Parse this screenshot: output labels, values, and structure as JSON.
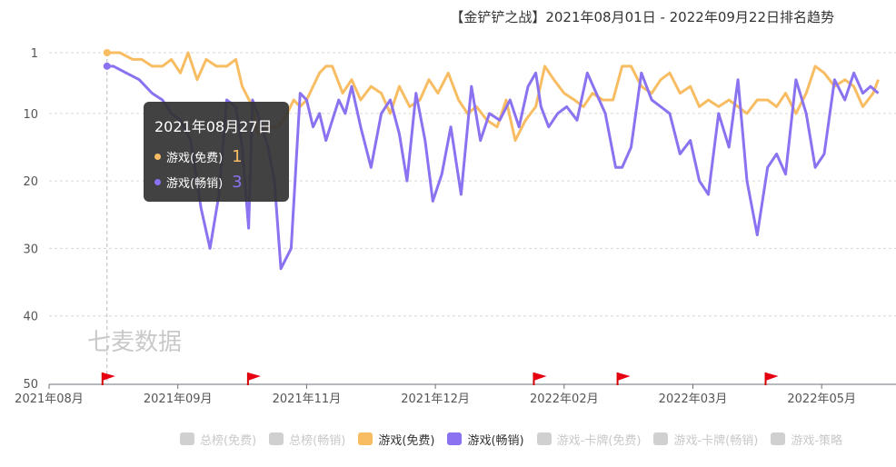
{
  "title": "【金铲铲之战】2021年08月01日 - 2022年09月22日排名趋势",
  "watermark": "七麦数据",
  "colors": {
    "free": "#f8bd63",
    "paid": "#8a72f0",
    "inactive": "#d0d0d0"
  },
  "tooltip": {
    "date": "2021年08月27日",
    "rows": [
      {
        "label": "游戏(免费)",
        "value": "1",
        "color": "#f8bd63"
      },
      {
        "label": "游戏(畅销)",
        "value": "3",
        "color": "#8a72f0"
      }
    ]
  },
  "legend": [
    {
      "label": "总榜(免费)",
      "active": false,
      "color": "#d0d0d0"
    },
    {
      "label": "总榜(畅销)",
      "active": false,
      "color": "#d0d0d0"
    },
    {
      "label": "游戏(免费)",
      "active": true,
      "color": "#f8bd63"
    },
    {
      "label": "游戏(畅销)",
      "active": true,
      "color": "#8a72f0"
    },
    {
      "label": "游戏-卡牌(免费)",
      "active": false,
      "color": "#d0d0d0"
    },
    {
      "label": "游戏-卡牌(畅销)",
      "active": false,
      "color": "#d0d0d0"
    },
    {
      "label": "游戏-策略",
      "active": false,
      "color": "#d0d0d0"
    }
  ],
  "chart_data": {
    "type": "line",
    "y_inverted": true,
    "ylim": [
      1,
      50
    ],
    "y_ticks": [
      1,
      10,
      20,
      30,
      40,
      50
    ],
    "x_tick_labels": [
      "2021年08月",
      "2021年09月",
      "2021年11月",
      "2021年12月",
      "2022年02月",
      "2022年03月",
      "2022年05月"
    ],
    "x_tick_positions": [
      0,
      1,
      2,
      3,
      4,
      5,
      6
    ],
    "x_range": [
      0,
      6.44
    ],
    "grid": true,
    "legend_position": "bottom",
    "crosshair_x": 0.45,
    "event_flags_x": [
      0.45,
      1.58,
      3.8,
      4.45,
      5.6
    ],
    "series": [
      {
        "name": "游戏(免费)",
        "color": "#f8bd63",
        "x": [
          0.45,
          0.55,
          0.65,
          0.72,
          0.8,
          0.88,
          0.95,
          1.02,
          1.08,
          1.15,
          1.22,
          1.3,
          1.38,
          1.45,
          1.5,
          1.58,
          1.62,
          1.7,
          1.78,
          1.85,
          1.9,
          1.95,
          2.0,
          2.05,
          2.1,
          2.15,
          2.2,
          2.28,
          2.35,
          2.42,
          2.5,
          2.58,
          2.65,
          2.72,
          2.8,
          2.88,
          2.95,
          3.02,
          3.1,
          3.18,
          3.25,
          3.32,
          3.4,
          3.48,
          3.55,
          3.62,
          3.7,
          3.78,
          3.85,
          3.92,
          4.0,
          4.08,
          4.15,
          4.22,
          4.3,
          4.38,
          4.45,
          4.52,
          4.6,
          4.68,
          4.75,
          4.82,
          4.9,
          4.98,
          5.05,
          5.12,
          5.2,
          5.28,
          5.35,
          5.42,
          5.5,
          5.58,
          5.65,
          5.72,
          5.8,
          5.88,
          5.95,
          6.02,
          6.1,
          6.18,
          6.25,
          6.32,
          6.4,
          6.44
        ],
        "values": [
          1,
          1,
          2,
          2,
          3,
          3,
          2,
          4,
          1,
          5,
          2,
          3,
          3,
          2,
          6,
          9,
          13,
          12,
          12,
          10,
          8,
          9,
          8,
          6,
          4,
          3,
          3,
          7,
          5,
          8,
          6,
          7,
          10,
          6,
          9,
          8,
          5,
          7,
          4,
          8,
          10,
          9,
          11,
          12,
          8,
          14,
          11,
          9,
          3,
          5,
          7,
          8,
          9,
          7,
          8,
          8,
          3,
          3,
          6,
          7,
          5,
          4,
          7,
          6,
          9,
          8,
          9,
          8,
          9,
          10,
          8,
          8,
          9,
          7,
          10,
          7,
          3,
          4,
          6,
          5,
          6,
          9,
          7,
          5
        ]
      },
      {
        "name": "游戏(畅销)",
        "color": "#8a72f0",
        "x": [
          0.45,
          0.5,
          0.6,
          0.7,
          0.8,
          0.88,
          0.95,
          1.02,
          1.1,
          1.18,
          1.25,
          1.32,
          1.38,
          1.45,
          1.5,
          1.55,
          1.58,
          1.62,
          1.7,
          1.75,
          1.8,
          1.88,
          1.95,
          2.0,
          2.05,
          2.1,
          2.15,
          2.2,
          2.25,
          2.3,
          2.35,
          2.42,
          2.5,
          2.58,
          2.65,
          2.72,
          2.78,
          2.85,
          2.92,
          2.98,
          3.05,
          3.12,
          3.2,
          3.28,
          3.35,
          3.42,
          3.5,
          3.58,
          3.65,
          3.72,
          3.78,
          3.82,
          3.88,
          3.95,
          4.02,
          4.1,
          4.18,
          4.25,
          4.32,
          4.4,
          4.45,
          4.52,
          4.6,
          4.68,
          4.75,
          4.82,
          4.9,
          4.98,
          5.05,
          5.12,
          5.2,
          5.28,
          5.35,
          5.42,
          5.5,
          5.58,
          5.65,
          5.72,
          5.8,
          5.88,
          5.95,
          6.02,
          6.1,
          6.18,
          6.25,
          6.32,
          6.38,
          6.44
        ],
        "values": [
          3,
          3,
          4,
          5,
          7,
          8,
          10,
          11,
          14,
          24,
          30,
          22,
          8,
          9,
          15,
          27,
          8,
          10,
          15,
          20,
          33,
          30,
          7,
          8,
          12,
          10,
          14,
          11,
          8,
          10,
          6,
          12,
          18,
          10,
          8,
          13,
          20,
          7,
          14,
          23,
          19,
          12,
          22,
          6,
          14,
          10,
          11,
          8,
          12,
          6,
          4,
          9,
          12,
          10,
          9,
          11,
          4,
          7,
          10,
          18,
          18,
          15,
          4,
          8,
          9,
          10,
          16,
          14,
          20,
          22,
          10,
          15,
          5,
          20,
          28,
          18,
          16,
          19,
          5,
          10,
          18,
          16,
          5,
          8,
          4,
          7,
          6,
          7
        ]
      }
    ]
  }
}
